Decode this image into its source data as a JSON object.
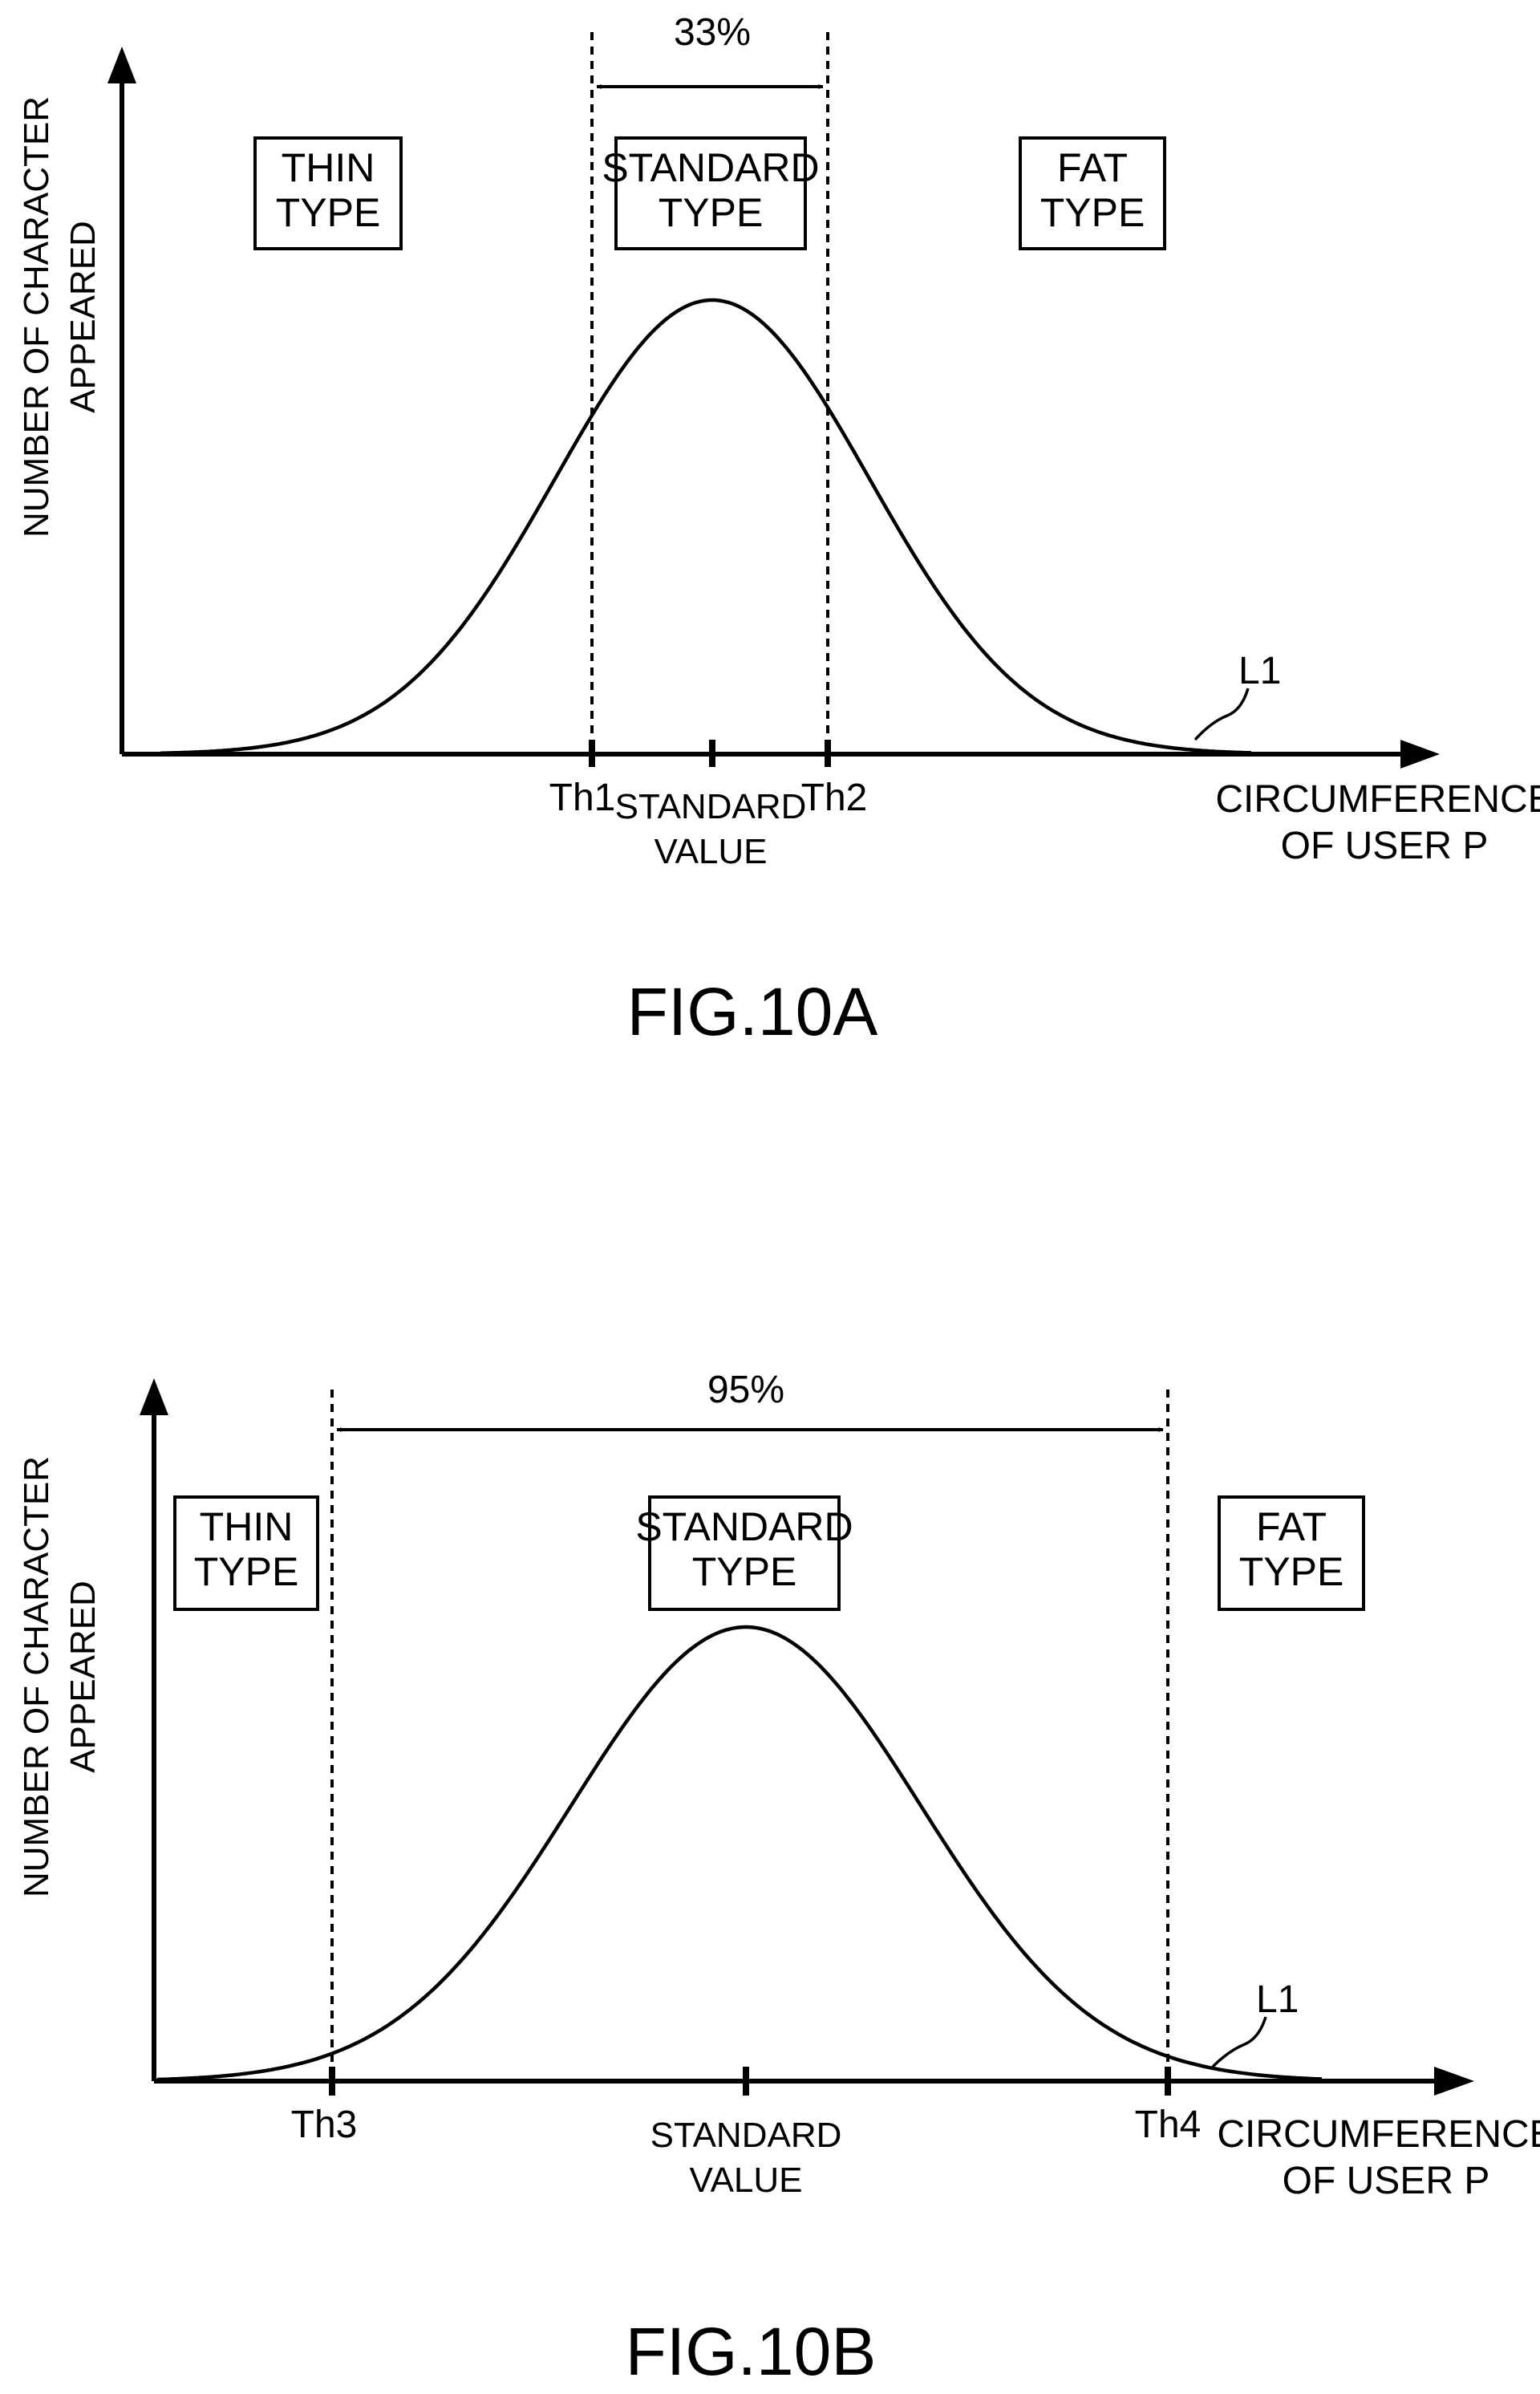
{
  "figures": [
    {
      "id": "fig10a",
      "title": "FIG.10A",
      "y_axis_label": [
        "NUMBER OF CHARACTER",
        "APPEARED"
      ],
      "x_axis_label": [
        "CIRCUMFERENCE",
        "OF USER P"
      ],
      "range_label": "33%",
      "threshold_left": "Th1",
      "threshold_right": "Th2",
      "center_label": [
        "STANDARD",
        "VALUE"
      ],
      "curve_label": "L1",
      "boxes": {
        "thin": [
          "THIN",
          "TYPE"
        ],
        "standard": [
          "STANDARD",
          "TYPE"
        ],
        "fat": [
          "FAT",
          "TYPE"
        ]
      }
    },
    {
      "id": "fig10b",
      "title": "FIG.10B",
      "y_axis_label": [
        "NUMBER OF CHARACTER",
        "APPEARED"
      ],
      "x_axis_label": [
        "CIRCUMFERENCE",
        "OF USER P"
      ],
      "range_label": "95%",
      "threshold_left": "Th3",
      "threshold_right": "Th4",
      "center_label": [
        "STANDARD",
        "VALUE"
      ],
      "curve_label": "L1",
      "boxes": {
        "thin": [
          "THIN",
          "TYPE"
        ],
        "standard": [
          "STANDARD",
          "TYPE"
        ],
        "fat": [
          "FAT",
          "TYPE"
        ]
      }
    }
  ]
}
